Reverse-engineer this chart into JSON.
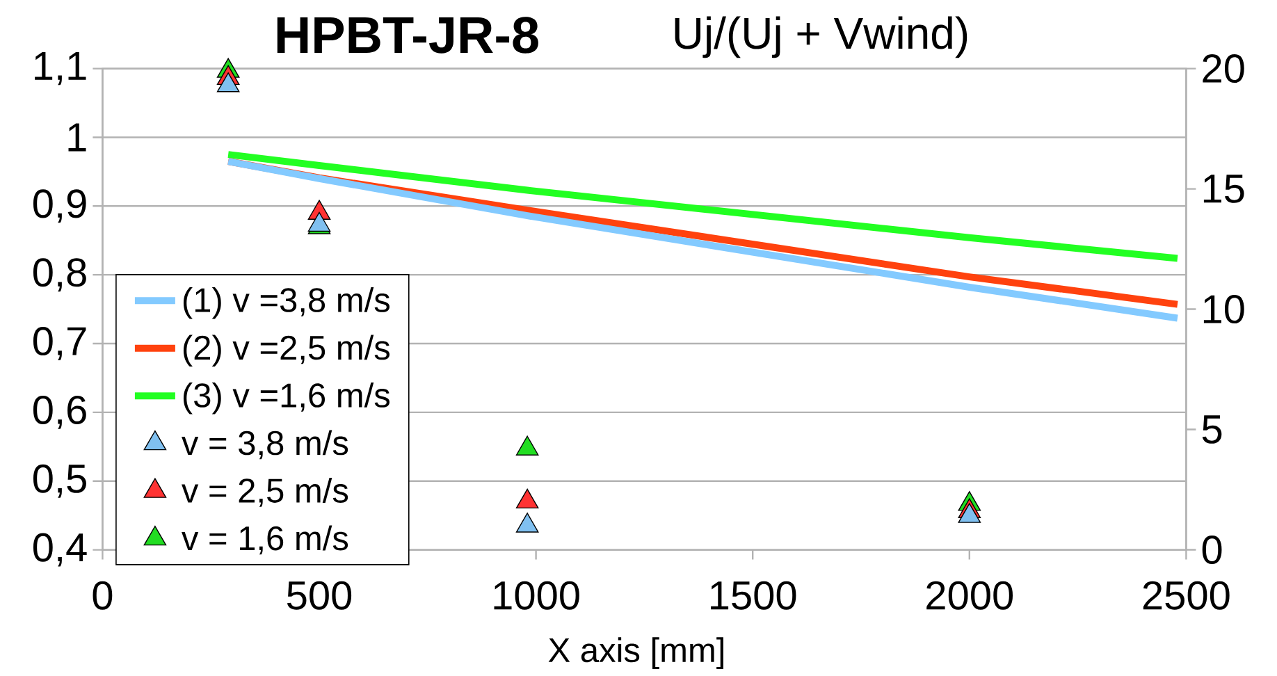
{
  "chart_data": {
    "type": "line",
    "title": "HPBT-JR-8",
    "subtitle": "Uj/(Uj + Vwind)",
    "xlabel": "X axis [mm]",
    "xlim": [
      0,
      2500
    ],
    "xticks": [
      0,
      500,
      1000,
      1500,
      2000,
      2500
    ],
    "ylim": [
      0.4,
      1.1
    ],
    "yticks": [
      {
        "value": 0.4,
        "label": "0,4"
      },
      {
        "value": 0.5,
        "label": "0,5"
      },
      {
        "value": 0.6,
        "label": "0,6"
      },
      {
        "value": 0.7,
        "label": "0,7"
      },
      {
        "value": 0.8,
        "label": "0,8"
      },
      {
        "value": 0.9,
        "label": "0,9"
      },
      1,
      {
        "value": 1.1,
        "label": "1,1"
      }
    ],
    "y2lim": [
      0,
      20
    ],
    "y2ticks": [
      0,
      5,
      10,
      15,
      20
    ],
    "grid": "y",
    "legend": "bottom left",
    "series": [
      {
        "name": "(1) v =3,8 m/s",
        "color": "#83caff",
        "x": [
          290,
          500,
          980,
          2000,
          2480
        ],
        "values": [
          0.965,
          0.94,
          0.886,
          0.782,
          0.737
        ]
      },
      {
        "name": "(2) v =2,5 m/s",
        "color": "#ff420e",
        "x": [
          290,
          500,
          980,
          2000,
          2480
        ],
        "values": [
          0.965,
          0.941,
          0.894,
          0.797,
          0.757
        ]
      },
      {
        "name": "(3) v =1,6 m/s",
        "color": "#22ff22",
        "x": [
          290,
          500,
          980,
          2000,
          2480
        ],
        "values": [
          0.975,
          0.959,
          0.923,
          0.854,
          0.824
        ]
      },
      {
        "name": "v = 3,8 m/s",
        "type": "scatter",
        "axis": "y2",
        "marker": "triangle",
        "color": "#80c0f0",
        "x": [
          290,
          500,
          980,
          2000
        ],
        "values": [
          19.3,
          13.5,
          1.0,
          1.4
        ]
      },
      {
        "name": "v = 2,5 m/s",
        "type": "scatter",
        "axis": "y2",
        "marker": "triangle",
        "color": "#ff3333",
        "x": [
          290,
          500,
          980,
          2000
        ],
        "values": [
          19.6,
          14.0,
          2.0,
          1.6
        ]
      },
      {
        "name": "v = 1,6 m/s",
        "type": "scatter",
        "axis": "y2",
        "marker": "triangle",
        "color": "#22dd22",
        "x": [
          290,
          500,
          980,
          2000
        ],
        "values": [
          19.9,
          13.4,
          4.2,
          1.9
        ]
      }
    ]
  }
}
